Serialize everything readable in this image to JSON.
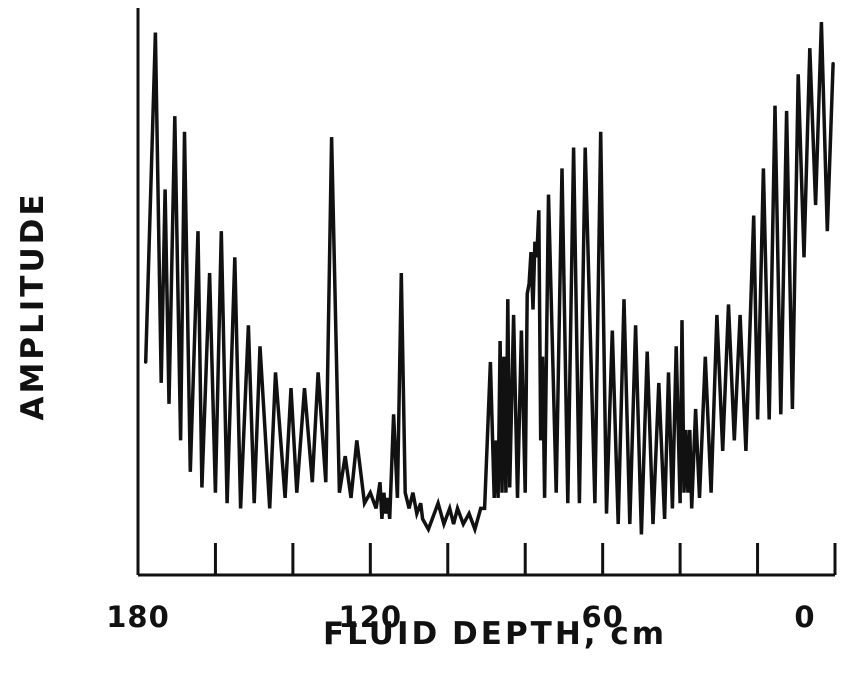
{
  "chart_data": {
    "type": "line",
    "title": "",
    "xlabel": "FLUID DEPTH, cm",
    "ylabel": "AMPLITUDE",
    "xlim": [
      180,
      0
    ],
    "ylim": [
      0,
      1
    ],
    "x_ticks_labeled": [
      "180",
      "120",
      "60",
      "0"
    ],
    "x_tick_values": [
      180,
      160,
      140,
      120,
      100,
      80,
      60,
      40,
      20,
      0
    ],
    "y_ticks": "none",
    "grid": false,
    "legend": "none",
    "series": [
      {
        "x": [
          178,
          175.5,
          174,
          173,
          172,
          170.5,
          169,
          168,
          166.5,
          164.5,
          163.5,
          161.5,
          160,
          158.5,
          157,
          155,
          153.5,
          151.5,
          150,
          148.5,
          146,
          144.5,
          142,
          140.5,
          139,
          137,
          135,
          133.5,
          131.5,
          130,
          128,
          126.5,
          125,
          123.5,
          121.5,
          120,
          118.5,
          117.5,
          117,
          116.5,
          116,
          115.5,
          115,
          114,
          113,
          112,
          111,
          110,
          109,
          108,
          107,
          106.5,
          105,
          104,
          102.5,
          101,
          99.5,
          98.5,
          97.5,
          96,
          94.5,
          93,
          91.5,
          90.5,
          89,
          88,
          87.5,
          87,
          86.5,
          86,
          85.5,
          85,
          84.5,
          84,
          83,
          82,
          81,
          80,
          79.5,
          79,
          78.5,
          78,
          77.5,
          77,
          76.5,
          76,
          75.5,
          75,
          74,
          72,
          70.5,
          69,
          67.5,
          66,
          64.5,
          62,
          60.5,
          59,
          57.5,
          56,
          54.5,
          53,
          51.5,
          50,
          48.5,
          47,
          45.5,
          44,
          43,
          42,
          41,
          40,
          39.5,
          39,
          38.5,
          38,
          37.5,
          37,
          36,
          35,
          33.5,
          32,
          30.5,
          29,
          27.5,
          26,
          24.5,
          23,
          21,
          20,
          18.5,
          17,
          15.5,
          14,
          12.5,
          11,
          9.5,
          8,
          6.5,
          5,
          3.5,
          2,
          0.5
        ],
        "y": [
          0.35,
          0.98,
          0.31,
          0.68,
          0.27,
          0.82,
          0.2,
          0.79,
          0.14,
          0.6,
          0.11,
          0.52,
          0.1,
          0.6,
          0.08,
          0.55,
          0.07,
          0.42,
          0.08,
          0.38,
          0.07,
          0.33,
          0.09,
          0.3,
          0.1,
          0.3,
          0.12,
          0.33,
          0.12,
          0.78,
          0.1,
          0.17,
          0.09,
          0.2,
          0.08,
          0.1,
          0.07,
          0.12,
          0.05,
          0.1,
          0.06,
          0.09,
          0.05,
          0.25,
          0.09,
          0.52,
          0.1,
          0.07,
          0.1,
          0.06,
          0.08,
          0.05,
          0.03,
          0.05,
          0.08,
          0.04,
          0.07,
          0.04,
          0.07,
          0.04,
          0.06,
          0.03,
          0.07,
          0.07,
          0.35,
          0.09,
          0.2,
          0.09,
          0.39,
          0.1,
          0.36,
          0.1,
          0.47,
          0.11,
          0.44,
          0.09,
          0.41,
          0.1,
          0.48,
          0.5,
          0.56,
          0.45,
          0.58,
          0.55,
          0.64,
          0.2,
          0.36,
          0.09,
          0.67,
          0.1,
          0.72,
          0.08,
          0.76,
          0.08,
          0.76,
          0.08,
          0.79,
          0.06,
          0.41,
          0.04,
          0.47,
          0.04,
          0.42,
          0.02,
          0.37,
          0.04,
          0.31,
          0.05,
          0.33,
          0.07,
          0.38,
          0.08,
          0.43,
          0.1,
          0.22,
          0.1,
          0.22,
          0.07,
          0.26,
          0.09,
          0.36,
          0.1,
          0.44,
          0.18,
          0.46,
          0.2,
          0.44,
          0.18,
          0.63,
          0.24,
          0.72,
          0.24,
          0.84,
          0.25,
          0.83,
          0.26,
          0.9,
          0.55,
          0.95,
          0.65,
          1.0,
          0.6,
          0.92
        ]
      }
    ]
  }
}
